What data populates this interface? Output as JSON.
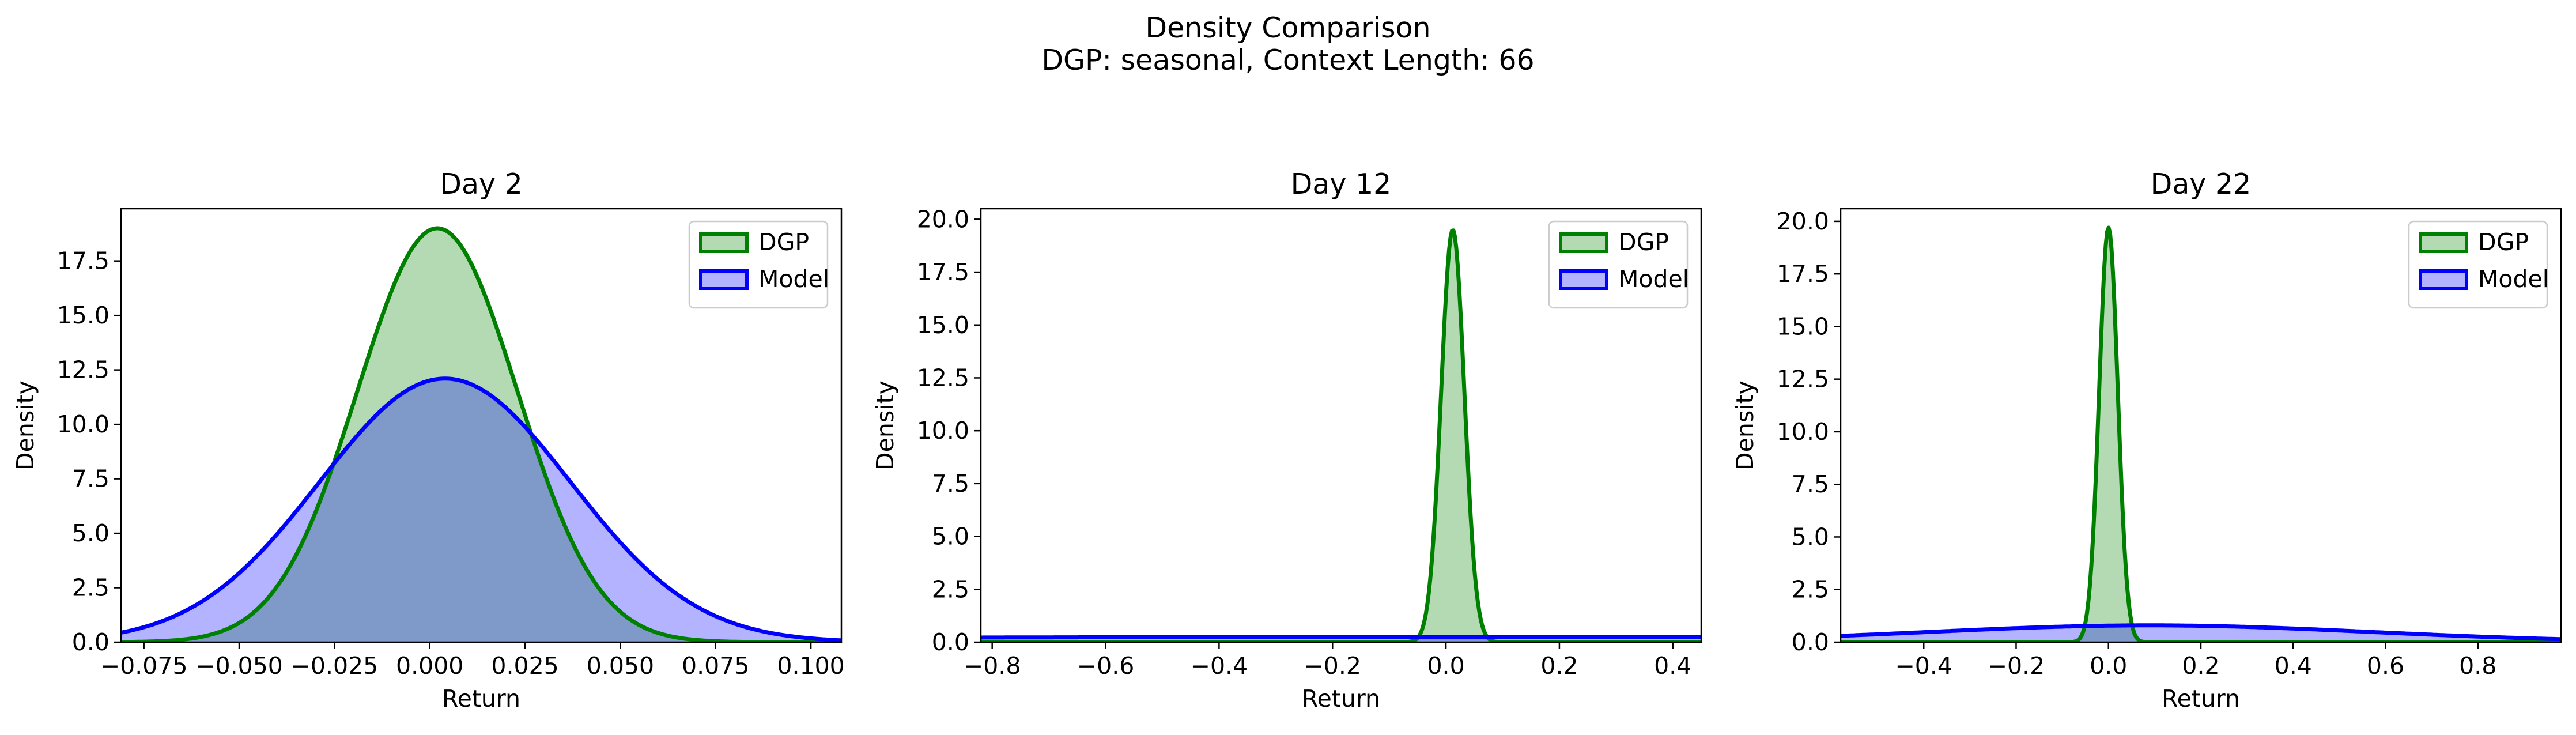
{
  "figure": {
    "title_line1": "Density Comparison",
    "title_line2": "DGP: seasonal, Context Length: 66"
  },
  "colors": {
    "dgp_line": "#008000",
    "dgp_fill": "#b3dab3",
    "model_line": "#0000ff",
    "model_fill": "#b3b3ff",
    "overlap_fill": "#7f99c8"
  },
  "chart_data": [
    {
      "type": "area",
      "title": "Day 2",
      "xlabel": "Return",
      "ylabel": "Density",
      "xlim": [
        -0.081,
        0.108
      ],
      "ylim": [
        0,
        19.9
      ],
      "xticks": [
        -0.075,
        -0.05,
        -0.025,
        0.0,
        0.025,
        0.05,
        0.075,
        0.1
      ],
      "xtick_labels": [
        "−0.075",
        "−0.050",
        "−0.025",
        "0.000",
        "0.025",
        "0.050",
        "0.075",
        "0.100"
      ],
      "yticks": [
        0,
        2.5,
        5,
        7.5,
        10,
        12.5,
        15,
        17.5
      ],
      "ytick_labels": [
        "0.0",
        "2.5",
        "5.0",
        "7.5",
        "10.0",
        "12.5",
        "15.0",
        "17.5"
      ],
      "legend": "top-right",
      "series": [
        {
          "name": "DGP",
          "distribution": "normal",
          "mean": 0.002,
          "std": 0.021,
          "peak_density": 19.0
        },
        {
          "name": "Model",
          "distribution": "normal",
          "mean": 0.004,
          "std": 0.033,
          "peak_density": 12.1
        }
      ]
    },
    {
      "type": "area",
      "title": "Day 12",
      "xlabel": "Return",
      "ylabel": "Density",
      "xlim": [
        -0.82,
        0.45
      ],
      "ylim": [
        0,
        20.5
      ],
      "xticks": [
        -0.8,
        -0.6,
        -0.4,
        -0.2,
        0.0,
        0.2,
        0.4
      ],
      "xtick_labels": [
        "−0.8",
        "−0.6",
        "−0.4",
        "−0.2",
        "0.0",
        "0.2",
        "0.4"
      ],
      "yticks": [
        0,
        2.5,
        5,
        7.5,
        10,
        12.5,
        15,
        17.5,
        20
      ],
      "ytick_labels": [
        "0.0",
        "2.5",
        "5.0",
        "7.5",
        "10.0",
        "12.5",
        "15.0",
        "17.5",
        "20.0"
      ],
      "legend": "top-right",
      "series": [
        {
          "name": "DGP",
          "distribution": "normal",
          "mean": 0.012,
          "std": 0.0205,
          "peak_density": 19.5
        },
        {
          "name": "Model",
          "distribution": "normal",
          "mean": 0.0,
          "std": 1.6,
          "peak_density": 0.25
        }
      ]
    },
    {
      "type": "area",
      "title": "Day 22",
      "xlabel": "Return",
      "ylabel": "Density",
      "xlim": [
        -0.58,
        0.98
      ],
      "ylim": [
        0,
        20.6
      ],
      "xticks": [
        -0.4,
        -0.2,
        0.0,
        0.2,
        0.4,
        0.6,
        0.8
      ],
      "xtick_labels": [
        "−0.4",
        "−0.2",
        "0.0",
        "0.2",
        "0.4",
        "0.6",
        "0.8"
      ],
      "yticks": [
        0,
        2.5,
        5,
        7.5,
        10,
        12.5,
        15,
        17.5,
        20
      ],
      "ytick_labels": [
        "0.0",
        "2.5",
        "5.0",
        "7.5",
        "10.0",
        "12.5",
        "15.0",
        "17.5",
        "20.0"
      ],
      "legend": "top-right",
      "series": [
        {
          "name": "DGP",
          "distribution": "normal",
          "mean": 0.0,
          "std": 0.0202,
          "peak_density": 19.7
        },
        {
          "name": "Model",
          "distribution": "normal",
          "mean": 0.09,
          "std": 0.48,
          "peak_density": 0.8
        }
      ]
    }
  ]
}
